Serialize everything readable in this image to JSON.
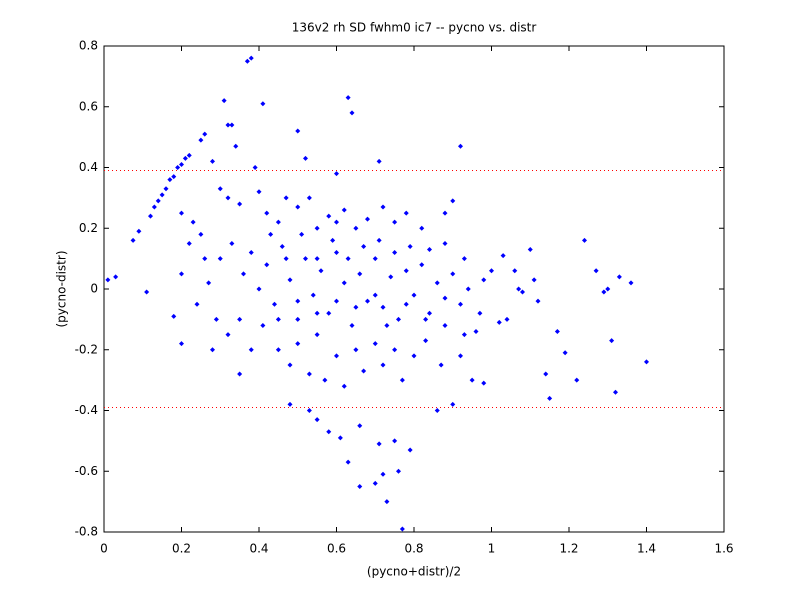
{
  "chart_data": {
    "type": "scatter",
    "title": "136v2 rh SD fwhm0 ic7 -- pycno vs. distr",
    "x_label": "(pycno+distr)/2",
    "y_label": "(pycno-distr)",
    "color": "#0000ff",
    "reference_color": "#ff0000",
    "reference_lines": [
      0.39,
      -0.39
    ],
    "xlim": [
      0,
      1.6
    ],
    "ylim": [
      -0.8,
      0.8
    ],
    "xticks": [
      0,
      0.2,
      0.4,
      0.6,
      0.8,
      1,
      1.2,
      1.4,
      1.6
    ],
    "yticks": [
      -0.8,
      -0.6,
      -0.4,
      -0.2,
      0,
      0.2,
      0.4,
      0.6,
      0.8
    ],
    "x": [
      0.01,
      0.03,
      0.075,
      0.09,
      0.11,
      0.12,
      0.13,
      0.14,
      0.15,
      0.16,
      0.17,
      0.18,
      0.19,
      0.2,
      0.21,
      0.22,
      0.25,
      0.26,
      0.28,
      0.31,
      0.32,
      0.33,
      0.34,
      0.37,
      0.38,
      0.41,
      0.5,
      0.63,
      0.64,
      0.71,
      0.92,
      0.52,
      0.6,
      0.39,
      0.77,
      0.73,
      0.66,
      0.7,
      0.72,
      0.76,
      0.75,
      0.71,
      0.63,
      0.79,
      0.61,
      0.66,
      0.55,
      0.58,
      0.48,
      0.53,
      0.86,
      0.9,
      0.98,
      0.35,
      0.2,
      0.18,
      0.28,
      1.4,
      1.32,
      1.36,
      1.33,
      1.27,
      1.24,
      1.31,
      1.22,
      1.15,
      1.14,
      1.17,
      1.19,
      1.11,
      1.12,
      1.1,
      1.07,
      1.06,
      1.08,
      1.02,
      1.03,
      1.0,
      1.04,
      1.29,
      1.3,
      0.3,
      0.32,
      0.35,
      0.4,
      0.42,
      0.45,
      0.47,
      0.5,
      0.53,
      0.55,
      0.58,
      0.6,
      0.62,
      0.65,
      0.68,
      0.72,
      0.75,
      0.78,
      0.82,
      0.88,
      0.9,
      0.3,
      0.33,
      0.36,
      0.38,
      0.4,
      0.42,
      0.44,
      0.46,
      0.48,
      0.5,
      0.52,
      0.54,
      0.56,
      0.58,
      0.6,
      0.62,
      0.64,
      0.66,
      0.68,
      0.7,
      0.72,
      0.74,
      0.76,
      0.78,
      0.8,
      0.82,
      0.84,
      0.86,
      0.88,
      0.9,
      0.92,
      0.94,
      0.96,
      0.98,
      0.32,
      0.35,
      0.38,
      0.41,
      0.45,
      0.48,
      0.5,
      0.53,
      0.55,
      0.57,
      0.6,
      0.62,
      0.65,
      0.67,
      0.7,
      0.72,
      0.75,
      0.77,
      0.8,
      0.83,
      0.87,
      0.92,
      0.95,
      0.25,
      0.22,
      0.2,
      0.24,
      0.27,
      0.26,
      0.29,
      0.2,
      0.23,
      0.43,
      0.47,
      0.51,
      0.55,
      0.59,
      0.63,
      0.67,
      0.71,
      0.75,
      0.79,
      0.84,
      0.88,
      0.93,
      0.45,
      0.5,
      0.55,
      0.6,
      0.65,
      0.7,
      0.73,
      0.78,
      0.83,
      0.88,
      0.93,
      0.97
    ],
    "y": [
      0.03,
      0.04,
      0.16,
      0.19,
      -0.01,
      0.24,
      0.27,
      0.29,
      0.31,
      0.33,
      0.36,
      0.37,
      0.4,
      0.41,
      0.43,
      0.44,
      0.49,
      0.51,
      0.42,
      0.62,
      0.54,
      0.54,
      0.47,
      0.75,
      0.76,
      0.61,
      0.52,
      0.63,
      0.58,
      0.42,
      0.47,
      0.43,
      0.38,
      0.4,
      -0.79,
      -0.7,
      -0.65,
      -0.64,
      -0.61,
      -0.6,
      -0.5,
      -0.51,
      -0.57,
      -0.53,
      -0.49,
      -0.45,
      -0.43,
      -0.47,
      -0.38,
      -0.4,
      -0.4,
      -0.38,
      -0.31,
      -0.28,
      -0.18,
      -0.09,
      -0.2,
      -0.24,
      -0.34,
      0.02,
      0.04,
      0.06,
      0.16,
      -0.17,
      -0.3,
      -0.36,
      -0.28,
      -0.14,
      -0.21,
      0.03,
      -0.04,
      0.13,
      0.0,
      0.06,
      -0.01,
      -0.11,
      0.11,
      0.06,
      -0.1,
      -0.01,
      0.0,
      0.33,
      0.3,
      0.28,
      0.32,
      0.25,
      0.22,
      0.3,
      0.27,
      0.3,
      0.2,
      0.24,
      0.22,
      0.26,
      0.2,
      0.23,
      0.27,
      0.22,
      0.25,
      0.2,
      0.25,
      0.29,
      0.1,
      0.15,
      0.05,
      0.12,
      0.0,
      0.08,
      -0.05,
      0.14,
      0.03,
      -0.1,
      0.1,
      -0.02,
      0.06,
      -0.08,
      0.12,
      0.02,
      -0.12,
      0.05,
      -0.04,
      0.1,
      -0.06,
      0.04,
      -0.1,
      0.06,
      -0.02,
      0.08,
      -0.08,
      0.02,
      -0.12,
      0.05,
      -0.05,
      0.0,
      -0.14,
      0.03,
      -0.15,
      -0.1,
      -0.2,
      -0.12,
      -0.2,
      -0.25,
      -0.18,
      -0.28,
      -0.15,
      -0.3,
      -0.22,
      -0.32,
      -0.2,
      -0.27,
      -0.18,
      -0.25,
      -0.2,
      -0.3,
      -0.22,
      -0.17,
      -0.25,
      -0.22,
      -0.3,
      0.18,
      0.15,
      0.05,
      -0.05,
      0.02,
      0.1,
      -0.1,
      0.25,
      0.22,
      0.18,
      0.1,
      0.18,
      0.1,
      0.16,
      0.1,
      0.14,
      0.16,
      0.12,
      0.14,
      0.13,
      0.15,
      0.1,
      -0.1,
      -0.04,
      -0.08,
      -0.04,
      -0.06,
      -0.02,
      -0.12,
      -0.05,
      -0.1,
      -0.03,
      -0.15,
      -0.08
    ]
  }
}
